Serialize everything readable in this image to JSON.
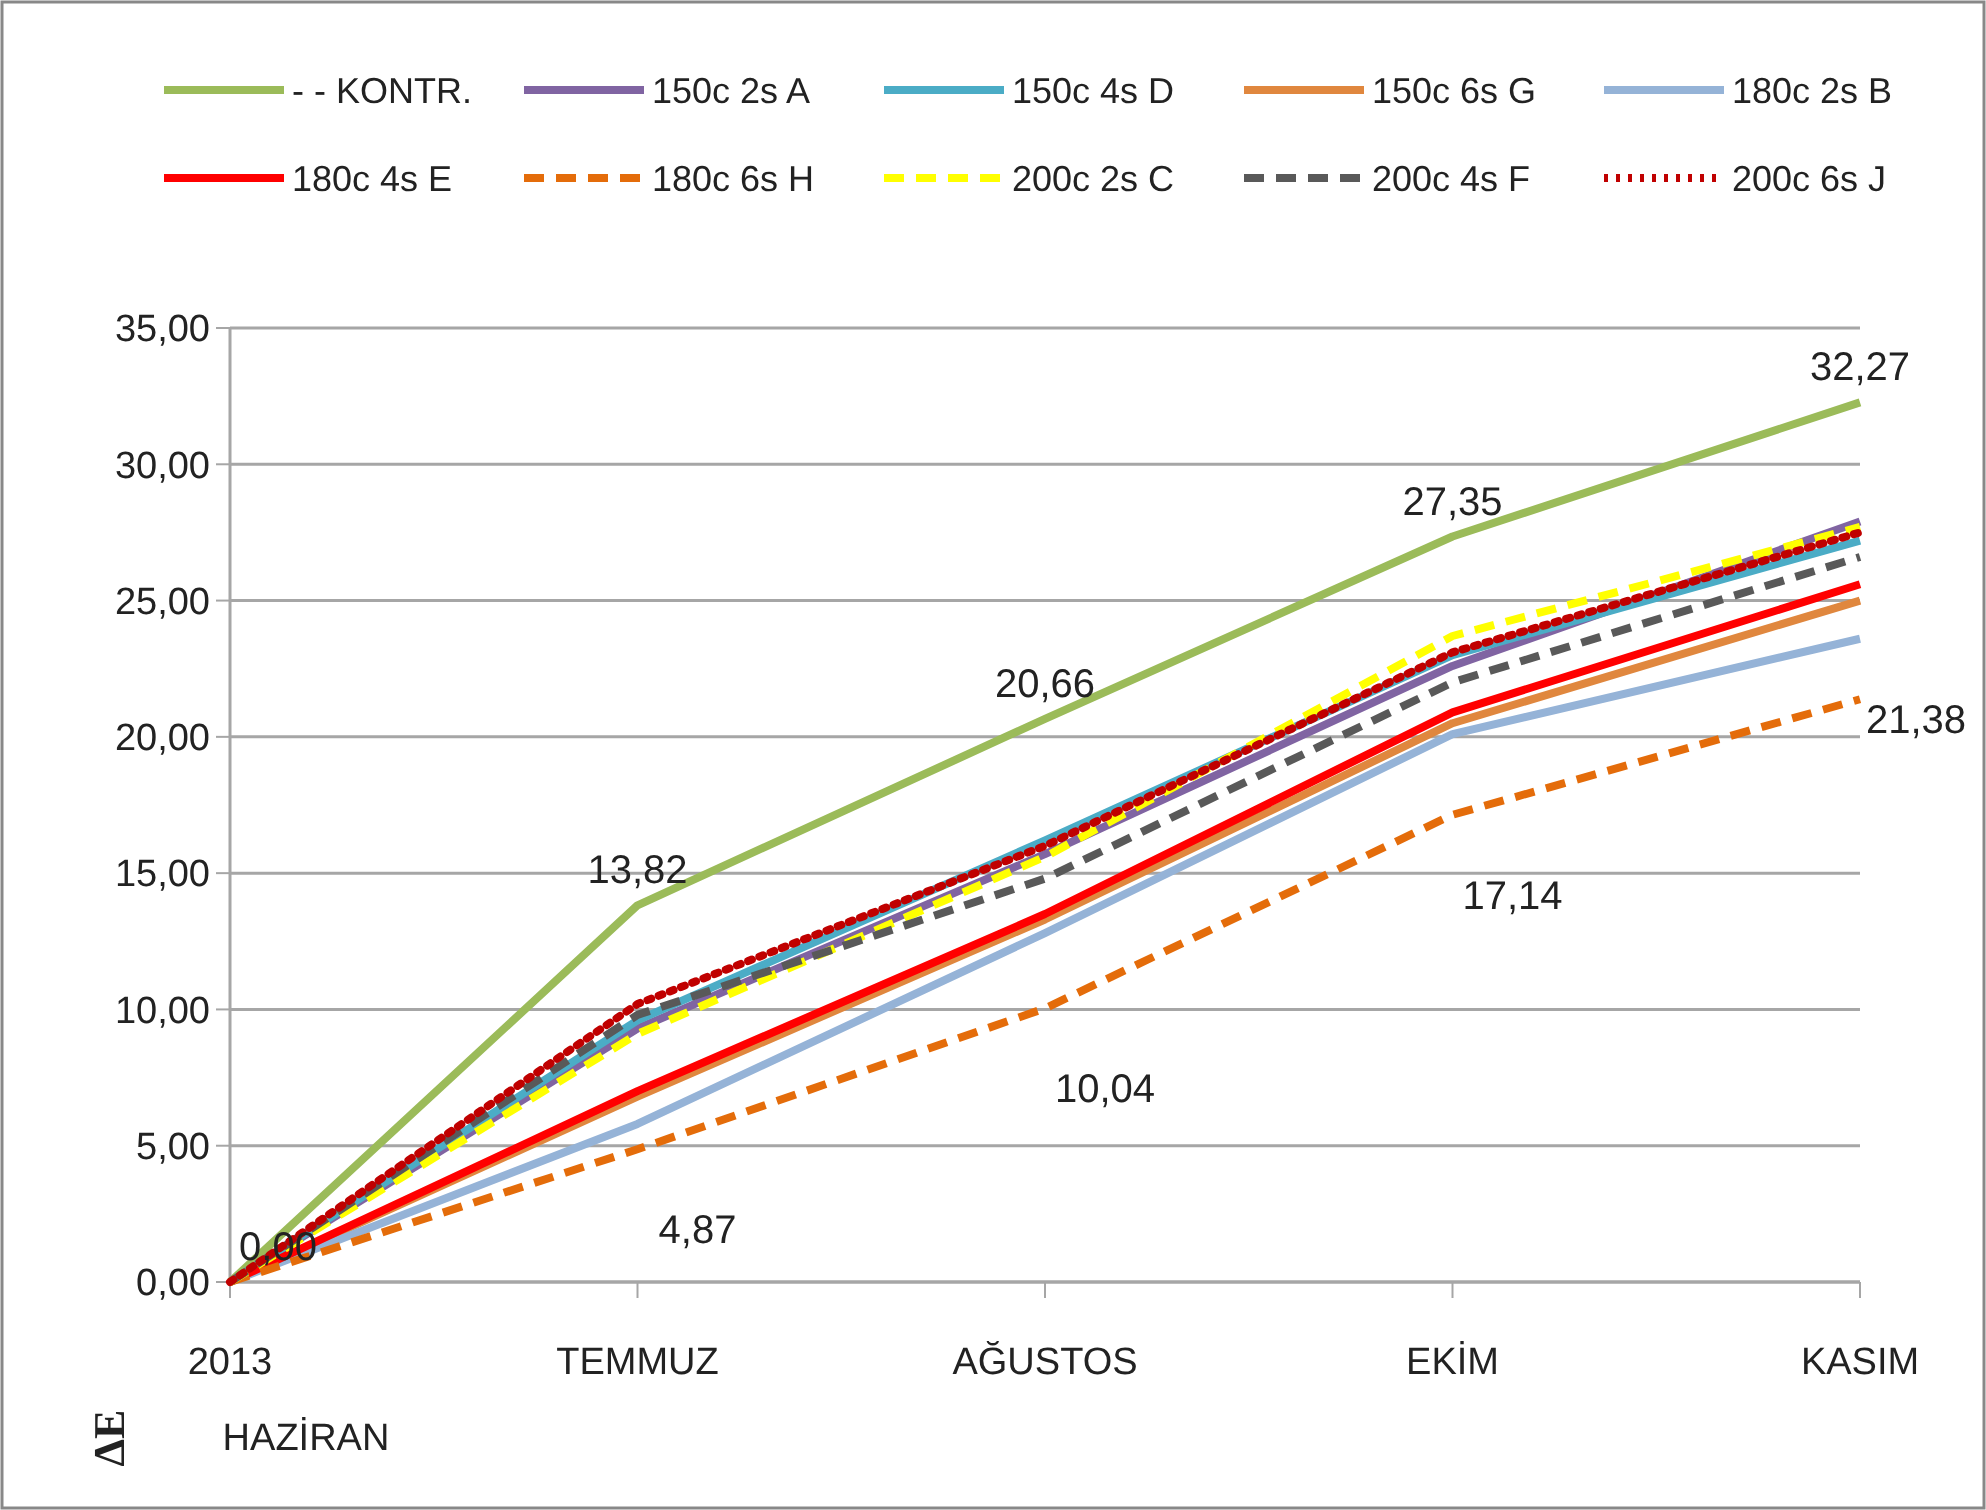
{
  "chart_data": {
    "type": "line",
    "ylabel": "ΔE",
    "categories": [
      "2013\nHAZİRAN",
      "TEMMUZ",
      "AĞUSTOS",
      "EKİM",
      "KASIM"
    ],
    "ylim": [
      0,
      35
    ],
    "yticks": [
      {
        "value": 0,
        "label": "0,00"
      },
      {
        "value": 5,
        "label": "5,00"
      },
      {
        "value": 10,
        "label": "10,00"
      },
      {
        "value": 15,
        "label": "15,00"
      },
      {
        "value": 20,
        "label": "20,00"
      },
      {
        "value": 25,
        "label": "25,00"
      },
      {
        "value": 30,
        "label": "30,00"
      },
      {
        "value": 35,
        "label": "35,00"
      }
    ],
    "grid": "y",
    "legend": "top",
    "series": [
      {
        "name": "- - KONTR.",
        "color": "#9bbb59",
        "line_style": "solid",
        "values": [
          0,
          13.82,
          20.66,
          27.35,
          32.27
        ],
        "value_labels": [
          "0,00",
          "13,82",
          "20,66",
          "27,35",
          "32,27"
        ]
      },
      {
        "name": "150c 2s A",
        "color": "#8064a2",
        "line_style": "solid",
        "values": [
          0,
          9.3,
          15.7,
          22.6,
          27.9
        ]
      },
      {
        "name": "150c 4s D",
        "color": "#4bacc6",
        "line_style": "solid",
        "values": [
          0,
          9.6,
          16.2,
          23.0,
          27.2
        ]
      },
      {
        "name": "150c 6s G",
        "color": "#e0873e",
        "line_style": "solid",
        "values": [
          0,
          6.8,
          13.3,
          20.5,
          25.0
        ]
      },
      {
        "name": "180c 2s B",
        "color": "#95b3d7",
        "line_style": "solid",
        "values": [
          0,
          5.8,
          12.8,
          20.1,
          23.6
        ]
      },
      {
        "name": "180c 4s E",
        "color": "#ff0000",
        "line_style": "solid",
        "values": [
          0,
          7.0,
          13.5,
          20.9,
          25.6
        ]
      },
      {
        "name": "180c 6s H",
        "color": "#e46c0a",
        "line_style": "dashed",
        "values": [
          0,
          4.87,
          10.04,
          17.14,
          21.38
        ],
        "value_labels": [
          null,
          "4,87",
          "10,04",
          "17,14",
          "21,38"
        ]
      },
      {
        "name": "200c 2s C",
        "color": "#ffff00",
        "line_style": "dashed",
        "values": [
          0,
          9.1,
          15.6,
          23.7,
          27.7
        ]
      },
      {
        "name": "200c 4s F",
        "color": "#595959",
        "line_style": "dashed",
        "values": [
          0,
          9.8,
          14.8,
          22.0,
          26.6
        ]
      },
      {
        "name": "200c 6s J",
        "color": "#c00000",
        "line_style": "dotted",
        "values": [
          0,
          10.2,
          16.0,
          23.1,
          27.5
        ]
      }
    ]
  }
}
